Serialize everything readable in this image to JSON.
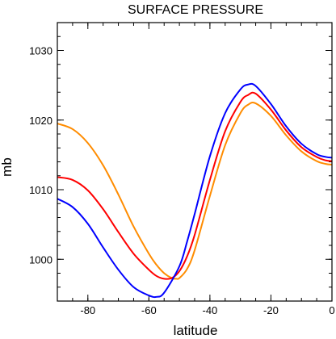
{
  "chart_data": {
    "type": "line",
    "title": "SURFACE PRESSURE",
    "xlabel": "latitude",
    "ylabel": "mb",
    "xlim": [
      -90,
      0
    ],
    "ylim": [
      994,
      1034
    ],
    "xticks": [
      -80,
      -60,
      -40,
      -20,
      0
    ],
    "yticks": [
      1000,
      1010,
      1020,
      1030
    ],
    "grid": false,
    "legend": "none",
    "series": [
      {
        "color": "#0000ff",
        "x": [
          -90,
          -85,
          -80,
          -75,
          -70,
          -65,
          -60,
          -57.5,
          -55,
          -50,
          -47.5,
          -45,
          -40,
          -35,
          -30,
          -27.5,
          -25,
          -20,
          -15,
          -10,
          -5,
          -2,
          0
        ],
        "y": [
          1008.7,
          1007.5,
          1005.1,
          1001.7,
          998.5,
          996.0,
          994.8,
          994.6,
          995.2,
          999.0,
          1002.5,
          1006.5,
          1014.8,
          1021.0,
          1024.4,
          1025.1,
          1024.9,
          1022.3,
          1019.1,
          1016.6,
          1015.1,
          1014.7,
          1014.6
        ]
      },
      {
        "color": "#ff0000",
        "x": [
          -90,
          -85,
          -80,
          -75,
          -70,
          -65,
          -60,
          -57.5,
          -55,
          -52.5,
          -50,
          -47.5,
          -45,
          -40,
          -35,
          -30,
          -27.5,
          -25,
          -20,
          -15,
          -10,
          -5,
          -2,
          0
        ],
        "y": [
          1011.8,
          1011.4,
          1009.9,
          1007.2,
          1003.9,
          1000.8,
          998.5,
          997.6,
          997.2,
          997.3,
          998.3,
          1000.4,
          1003.5,
          1011.4,
          1018.4,
          1022.6,
          1023.6,
          1023.8,
          1021.5,
          1018.5,
          1016.1,
          1014.7,
          1014.2,
          1014.1
        ]
      },
      {
        "color": "#ff8c00",
        "x": [
          -90,
          -85,
          -80,
          -75,
          -70,
          -65,
          -60,
          -57.5,
          -55,
          -52.5,
          -51,
          -50,
          -47.5,
          -45,
          -40,
          -35,
          -30,
          -27.5,
          -25,
          -20,
          -15,
          -10,
          -5,
          -2,
          0
        ],
        "y": [
          1019.5,
          1018.7,
          1016.7,
          1013.5,
          1009.3,
          1004.7,
          1000.8,
          999.2,
          998.0,
          997.3,
          997.2,
          997.3,
          998.6,
          1001.3,
          1009.1,
          1016.4,
          1021.0,
          1022.2,
          1022.4,
          1020.6,
          1017.8,
          1015.5,
          1014.1,
          1013.7,
          1013.6
        ]
      }
    ]
  }
}
